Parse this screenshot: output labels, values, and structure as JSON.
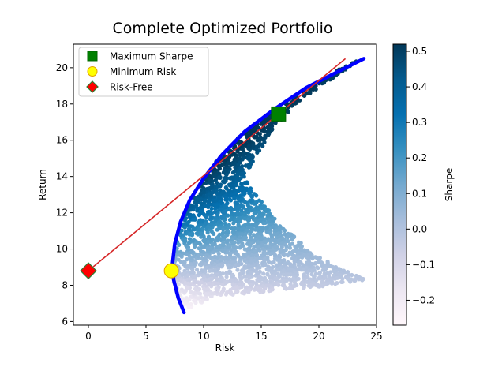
{
  "chart_data": {
    "type": "scatter",
    "title": "Complete Optimized Portfolio",
    "xlabel": "Risk",
    "ylabel": "Return",
    "xlim": [
      -1.3,
      25
    ],
    "ylim": [
      5.8,
      21.3
    ],
    "x_ticks": [
      0,
      5,
      10,
      15,
      20,
      25
    ],
    "y_ticks": [
      6,
      8,
      10,
      12,
      14,
      16,
      18,
      20
    ],
    "grid": false,
    "legend_position": "top-left",
    "colorbar": {
      "label": "Sharpe",
      "range": [
        -0.27,
        0.52
      ],
      "ticks": [
        -0.2,
        -0.1,
        0.0,
        0.1,
        0.2,
        0.3,
        0.4,
        0.5
      ],
      "colormap": "PuBu",
      "colors": [
        "#fff7fb",
        "#ece7f2",
        "#d0d1e6",
        "#a6bddb",
        "#74a9cf",
        "#3690c0",
        "#0570b0",
        "#045a8d",
        "#023858"
      ]
    },
    "scatter_region": {
      "series_name": "",
      "min_risk_edge": [
        [
          8.3,
          6.6
        ],
        [
          7.7,
          7.4
        ],
        [
          7.3,
          8.4
        ],
        [
          7.4,
          9.6
        ],
        [
          7.8,
          10.8
        ],
        [
          8.6,
          12.2
        ],
        [
          9.8,
          13.7
        ],
        [
          11.3,
          15.0
        ],
        [
          13.4,
          16.4
        ],
        [
          16.0,
          17.6
        ],
        [
          18.8,
          18.8
        ],
        [
          21.7,
          19.9
        ],
        [
          23.4,
          20.4
        ]
      ],
      "outer_edge": [
        [
          23.4,
          20.4
        ],
        [
          21.0,
          19.3
        ],
        [
          18.0,
          18.0
        ],
        [
          16.0,
          16.6
        ],
        [
          14.5,
          15.0
        ],
        [
          13.5,
          14.0
        ],
        [
          14.5,
          13.0
        ],
        [
          16.5,
          11.5
        ],
        [
          19.0,
          10.0
        ],
        [
          22.0,
          8.9
        ],
        [
          24.0,
          8.3
        ],
        [
          20.0,
          7.9
        ],
        [
          15.0,
          7.6
        ],
        [
          11.0,
          7.4
        ],
        [
          8.3,
          6.6
        ]
      ]
    },
    "series": [
      {
        "name": "",
        "type": "line",
        "color": "#0000ff",
        "points": [
          [
            8.3,
            6.5
          ],
          [
            7.8,
            7.3
          ],
          [
            7.4,
            8.3
          ],
          [
            7.3,
            9.2
          ],
          [
            7.5,
            10.3
          ],
          [
            8.0,
            11.5
          ],
          [
            8.8,
            12.7
          ],
          [
            10.0,
            13.9
          ],
          [
            11.6,
            15.2
          ],
          [
            13.6,
            16.5
          ],
          [
            16.1,
            17.7
          ],
          [
            18.9,
            18.9
          ],
          [
            21.7,
            19.8
          ],
          [
            23.9,
            20.5
          ]
        ]
      },
      {
        "name": "",
        "type": "line",
        "color": "#d62728",
        "points": [
          [
            0.0,
            8.8
          ],
          [
            22.3,
            20.5
          ]
        ]
      },
      {
        "name": "Maximum Sharpe",
        "type": "marker",
        "marker": "square",
        "color": "#008000",
        "points": [
          [
            16.5,
            17.45
          ]
        ]
      },
      {
        "name": "Minimum Risk",
        "type": "marker",
        "marker": "circle",
        "color": "#ffff00",
        "points": [
          [
            7.2,
            8.8
          ]
        ]
      },
      {
        "name": "Risk-Free",
        "type": "marker",
        "marker": "diamond",
        "color": "#ff0000",
        "points": [
          [
            0.0,
            8.8
          ]
        ]
      }
    ]
  }
}
